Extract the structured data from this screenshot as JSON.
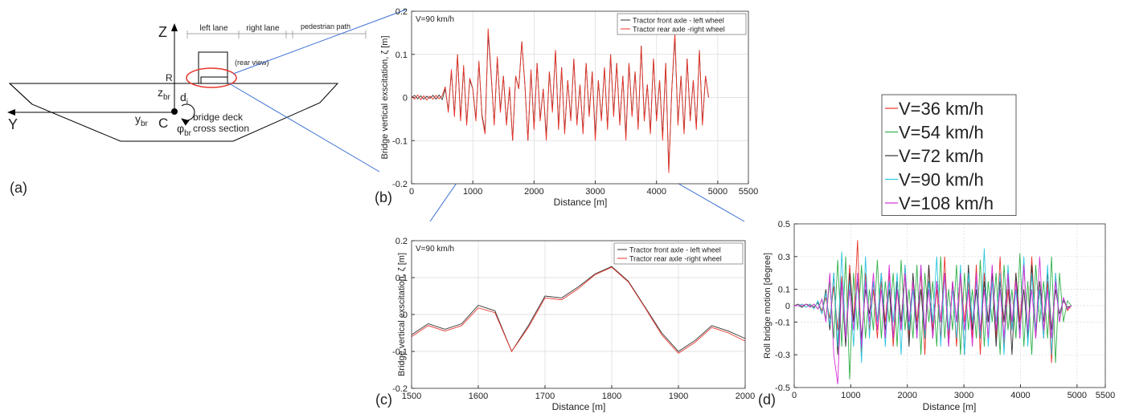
{
  "diagram": {
    "panel_label": "(a)",
    "z_axis": "Z",
    "y_axis": "Y",
    "left_lane": "left lane",
    "right_lane": "right lane",
    "pedestrian_path": "pedestrian path",
    "rear_view": "(rear view)",
    "r_label": "R",
    "z_br": {
      "text": "z",
      "sub": "br"
    },
    "d_i": {
      "text": "d",
      "sub": "i"
    },
    "y_br": {
      "text": "y",
      "sub": "br"
    },
    "c_label": "C",
    "phi_br": {
      "text": "φ",
      "sub": "br"
    },
    "deck_line1": "bridge deck",
    "deck_line2": "cross section"
  },
  "chart_data": [
    {
      "type": "line",
      "panel_label": "(b)",
      "title": "V=90 km/h",
      "xlabel": "Distance [m]",
      "ylabel": "Bridge vertical exscitation, ζ [m]",
      "grid": true,
      "legend_loc": "upper right",
      "xlim": [
        0,
        5500
      ],
      "xticks": [
        0,
        1000,
        2000,
        3000,
        4000,
        5000,
        5500
      ],
      "ylim": [
        -0.2,
        0.2
      ],
      "yticks": [
        -0.2,
        -0.1,
        0,
        0.1,
        0.2
      ],
      "x": [
        0,
        50,
        100,
        150,
        200,
        250,
        300,
        350,
        400,
        450,
        500,
        550,
        600,
        650,
        700,
        750,
        800,
        850,
        900,
        950,
        1000,
        1050,
        1100,
        1150,
        1200,
        1250,
        1300,
        1350,
        1400,
        1450,
        1500,
        1550,
        1600,
        1650,
        1700,
        1750,
        1800,
        1850,
        1900,
        1950,
        2000,
        2050,
        2100,
        2150,
        2200,
        2250,
        2300,
        2350,
        2400,
        2450,
        2500,
        2550,
        2600,
        2650,
        2700,
        2750,
        2800,
        2850,
        2900,
        2950,
        3000,
        3050,
        3100,
        3150,
        3200,
        3250,
        3300,
        3350,
        3400,
        3450,
        3500,
        3550,
        3600,
        3650,
        3700,
        3750,
        3800,
        3850,
        3900,
        3950,
        4000,
        4050,
        4100,
        4150,
        4200,
        4250,
        4300,
        4350,
        4400,
        4450,
        4500,
        4550,
        4600,
        4650,
        4700,
        4750,
        4800,
        4850
      ],
      "series": [
        {
          "name": "Tractor front axle - left wheel",
          "color": "#333333",
          "values": [
            0,
            0.005,
            -0.003,
            0.004,
            -0.004,
            0.003,
            -0.002,
            0.005,
            -0.004,
            0.006,
            -0.005,
            0.02,
            -0.03,
            0.06,
            -0.04,
            0.1,
            -0.05,
            0.07,
            -0.06,
            0.04,
            0.02,
            -0.05,
            0.08,
            -0.04,
            -0.08,
            0.15,
            0.05,
            -0.06,
            0.09,
            -0.03,
            0.05,
            -0.06,
            0.02,
            -0.1,
            0.05,
            0.02,
            0.13,
            0.03,
            -0.1,
            0.06,
            -0.07,
            0.08,
            -0.05,
            0.02,
            -0.09,
            0.06,
            -0.03,
            0.11,
            -0.07,
            0.07,
            -0.08,
            0.04,
            -0.05,
            0.09,
            -0.06,
            0.03,
            -0.08,
            0.08,
            -0.04,
            0.06,
            -0.09,
            0.04,
            -0.05,
            0.07,
            -0.07,
            0.1,
            -0.04,
            0.08,
            -0.06,
            0.05,
            -0.09,
            0.08,
            -0.04,
            0.06,
            -0.07,
            0.12,
            -0.05,
            0.03,
            -0.08,
            0.09,
            -0.05,
            0.04,
            -0.09,
            0.08,
            -0.17,
            0.02,
            0.14,
            -0.06,
            0.05,
            -0.08,
            0.09,
            -0.05,
            0.04,
            -0.07,
            0.11,
            -0.06,
            0.05,
            0
          ]
        },
        {
          "name": "Tractor rear axle -right wheel",
          "color": "#e8352b",
          "values": [
            0.003,
            -0.004,
            0.006,
            -0.005,
            0.004,
            -0.006,
            0.003,
            -0.004,
            0.005,
            -0.003,
            0.004,
            0.025,
            -0.035,
            0.065,
            -0.045,
            0.1,
            -0.055,
            0.075,
            -0.065,
            0.045,
            0.02,
            -0.055,
            0.085,
            -0.045,
            -0.085,
            0.16,
            0.055,
            -0.065,
            0.095,
            -0.035,
            0.05,
            -0.065,
            0.025,
            -0.1,
            0.05,
            0.02,
            0.13,
            0.03,
            -0.1,
            0.065,
            -0.075,
            0.08,
            -0.055,
            0.02,
            -0.1,
            0.06,
            -0.035,
            0.11,
            -0.075,
            0.07,
            -0.085,
            0.04,
            -0.055,
            0.09,
            -0.065,
            0.03,
            -0.085,
            0.08,
            -0.045,
            0.06,
            -0.1,
            0.04,
            -0.055,
            0.07,
            -0.075,
            0.1,
            -0.045,
            0.08,
            -0.065,
            0.05,
            -0.1,
            0.08,
            -0.045,
            0.06,
            -0.075,
            0.12,
            -0.055,
            0.03,
            -0.085,
            0.09,
            -0.055,
            0.04,
            -0.1,
            0.08,
            -0.175,
            0.02,
            0.15,
            -0.065,
            0.05,
            -0.085,
            0.09,
            -0.055,
            0.04,
            -0.075,
            0.11,
            -0.065,
            0.05,
            0
          ]
        }
      ]
    },
    {
      "type": "line",
      "panel_label": "(c)",
      "title": "V=90 km/h",
      "xlabel": "Distance [m]",
      "ylabel": "Bridge vertical exscitation, ζ [m]",
      "grid": true,
      "legend_loc": "upper right",
      "xlim": [
        1500,
        2000
      ],
      "xticks": [
        1500,
        1600,
        1700,
        1800,
        1900,
        2000
      ],
      "ylim": [
        -0.2,
        0.2
      ],
      "yticks": [
        -0.2,
        -0.1,
        0,
        0.1,
        0.2
      ],
      "x": [
        1500,
        1525,
        1550,
        1575,
        1600,
        1625,
        1650,
        1675,
        1700,
        1725,
        1750,
        1775,
        1800,
        1825,
        1850,
        1875,
        1900,
        1925,
        1950,
        1975,
        2000
      ],
      "series": [
        {
          "name": "Tractor front axle - left wheel",
          "color": "#333333",
          "values": [
            -0.055,
            -0.025,
            -0.04,
            -0.025,
            0.025,
            0.01,
            -0.1,
            -0.03,
            0.05,
            0.045,
            0.075,
            0.11,
            0.13,
            0.09,
            0.02,
            -0.05,
            -0.1,
            -0.07,
            -0.03,
            -0.045,
            -0.065
          ]
        },
        {
          "name": "Tractor rear axle -right wheel",
          "color": "#e8352b",
          "values": [
            -0.06,
            -0.03,
            -0.045,
            -0.03,
            0.018,
            0.005,
            -0.1,
            -0.035,
            0.045,
            0.04,
            0.07,
            0.108,
            0.128,
            0.088,
            0.018,
            -0.055,
            -0.105,
            -0.075,
            -0.035,
            -0.05,
            -0.072
          ]
        }
      ]
    },
    {
      "type": "line",
      "panel_label": "(d)",
      "xlabel": "Distance [m]",
      "ylabel": "Roll bridge motion [degree]",
      "grid": true,
      "legend_loc": "outside upper left",
      "xlim": [
        0,
        5500
      ],
      "xticks": [
        0,
        1000,
        2000,
        3000,
        4000,
        5000,
        5500
      ],
      "ylim": [
        -0.5,
        0.5
      ],
      "yticks": [
        -0.5,
        -0.3,
        -0.1,
        0,
        0.1,
        0.3,
        0.5
      ],
      "x": [
        0,
        70,
        140,
        210,
        280,
        350,
        420,
        490,
        560,
        630,
        700,
        770,
        840,
        910,
        980,
        1050,
        1120,
        1190,
        1260,
        1330,
        1400,
        1470,
        1540,
        1610,
        1680,
        1750,
        1820,
        1890,
        1960,
        2030,
        2100,
        2170,
        2240,
        2310,
        2380,
        2450,
        2520,
        2590,
        2660,
        2730,
        2800,
        2870,
        2940,
        3010,
        3080,
        3150,
        3220,
        3290,
        3360,
        3430,
        3500,
        3570,
        3640,
        3710,
        3780,
        3850,
        3920,
        3990,
        4060,
        4130,
        4200,
        4270,
        4340,
        4410,
        4480,
        4550,
        4620,
        4690,
        4760,
        4830,
        4900
      ],
      "series": [
        {
          "name": "V=36 km/h",
          "color": "#e8352b",
          "values": [
            0,
            0,
            0.01,
            -0.01,
            0.01,
            -0.01,
            0.02,
            -0.03,
            0.05,
            -0.08,
            0.12,
            -0.15,
            0.18,
            -0.2,
            0.25,
            -0.1,
            0.4,
            -0.3,
            0.2,
            -0.15,
            0.1,
            -0.2,
            0.15,
            -0.1,
            0.2,
            -0.25,
            0.1,
            -0.15,
            0.25,
            -0.2,
            0.15,
            -0.1,
            0.2,
            -0.3,
            0.25,
            -0.15,
            0.1,
            -0.2,
            0.3,
            -0.2,
            0.15,
            -0.25,
            0.2,
            -0.1,
            0.15,
            -0.2,
            0.25,
            -0.3,
            0.2,
            -0.1,
            0.15,
            -0.2,
            0.3,
            -0.25,
            0.1,
            -0.15,
            0.2,
            -0.1,
            0.25,
            -0.2,
            0.3,
            -0.15,
            0.1,
            -0.2,
            0.15,
            -0.35,
            0.2,
            -0.1,
            0.05,
            -0.03,
            0
          ]
        },
        {
          "name": "V=54 km/h",
          "color": "#2fb14a",
          "values": [
            0,
            0,
            -0.01,
            0.01,
            -0.01,
            0.01,
            -0.02,
            0.04,
            -0.08,
            0.15,
            -0.2,
            0.28,
            -0.25,
            0.3,
            -0.45,
            0.2,
            -0.15,
            0.25,
            -0.2,
            0.1,
            -0.15,
            0.28,
            -0.2,
            0.15,
            -0.1,
            0.2,
            -0.25,
            0.28,
            -0.15,
            0.1,
            -0.2,
            0.25,
            -0.3,
            0.2,
            -0.1,
            0.15,
            -0.25,
            0.3,
            -0.2,
            0.1,
            -0.15,
            0.25,
            -0.3,
            0.2,
            -0.15,
            0.1,
            -0.2,
            0.28,
            -0.25,
            0.15,
            -0.1,
            0.2,
            -0.3,
            0.25,
            -0.15,
            0.1,
            -0.2,
            0.32,
            -0.25,
            0.15,
            -0.3,
            0.25,
            -0.1,
            0.15,
            -0.2,
            0.3,
            -0.35,
            0.2,
            -0.1,
            0.03,
            0
          ]
        },
        {
          "name": "V=72 km/h",
          "color": "#333333",
          "values": [
            0,
            0.01,
            -0.01,
            0.01,
            0,
            -0.01,
            0.02,
            -0.05,
            0.1,
            -0.15,
            0.2,
            -0.3,
            0.15,
            -0.25,
            0.2,
            -0.1,
            0.15,
            -0.2,
            0.1,
            -0.05,
            0.15,
            -0.1,
            0.2,
            -0.15,
            0.1,
            -0.2,
            0.15,
            -0.1,
            0.2,
            -0.25,
            0.2,
            -0.15,
            0.1,
            -0.2,
            0.25,
            -0.2,
            0.15,
            -0.1,
            0.2,
            -0.25,
            0.15,
            -0.1,
            0.2,
            -0.3,
            0.25,
            -0.15,
            0.1,
            -0.2,
            0.15,
            -0.1,
            0.2,
            -0.25,
            0.15,
            -0.1,
            0.2,
            -0.3,
            0.2,
            -0.15,
            0.1,
            -0.2,
            0.25,
            -0.2,
            0.15,
            -0.1,
            0.2,
            -0.15,
            0.1,
            -0.05,
            0.03,
            -0.01,
            0
          ]
        },
        {
          "name": "V=90 km/h",
          "color": "#2cc6e0",
          "values": [
            0,
            0,
            0.01,
            -0.01,
            0.01,
            -0.02,
            0.03,
            -0.05,
            0.08,
            -0.12,
            0.2,
            -0.25,
            0.33,
            -0.2,
            0.15,
            -0.25,
            0.2,
            -0.35,
            0.3,
            -0.2,
            0.15,
            -0.1,
            0.2,
            -0.25,
            0.15,
            -0.1,
            0.2,
            -0.3,
            0.25,
            -0.15,
            0.1,
            -0.2,
            0.25,
            -0.2,
            0.15,
            -0.1,
            0.3,
            -0.25,
            0.2,
            -0.15,
            0.1,
            -0.2,
            0.25,
            -0.3,
            0.2,
            -0.1,
            0.15,
            -0.2,
            0.35,
            -0.25,
            0.15,
            -0.1,
            0.2,
            -0.3,
            0.25,
            -0.15,
            0.1,
            -0.2,
            0.3,
            -0.25,
            0.2,
            -0.15,
            0.1,
            -0.2,
            0.25,
            -0.3,
            0.2,
            -0.1,
            0.05,
            -0.02,
            0
          ]
        },
        {
          "name": "V=108 km/h",
          "color": "#d62fd6",
          "values": [
            0,
            0,
            0,
            0.01,
            -0.01,
            0.01,
            -0.02,
            0.04,
            -0.1,
            0.2,
            -0.3,
            -0.48,
            0.15,
            -0.2,
            0.1,
            -0.15,
            0.2,
            -0.25,
            0.15,
            -0.1,
            0.2,
            -0.15,
            0.1,
            -0.2,
            0.25,
            -0.2,
            0.1,
            -0.15,
            0.2,
            -0.1,
            0.15,
            -0.2,
            0.25,
            -0.15,
            0.1,
            -0.2,
            0.15,
            -0.1,
            0.2,
            -0.25,
            0.15,
            -0.1,
            0.2,
            -0.15,
            0.1,
            -0.25,
            0.2,
            -0.15,
            0.1,
            -0.2,
            0.25,
            -0.15,
            0.1,
            -0.2,
            0.2,
            -0.1,
            0.15,
            -0.2,
            0.25,
            -0.15,
            0.1,
            -0.2,
            0.3,
            -0.15,
            0.1,
            -0.2,
            0.15,
            -0.1,
            0.05,
            -0.02,
            0
          ]
        }
      ]
    }
  ]
}
